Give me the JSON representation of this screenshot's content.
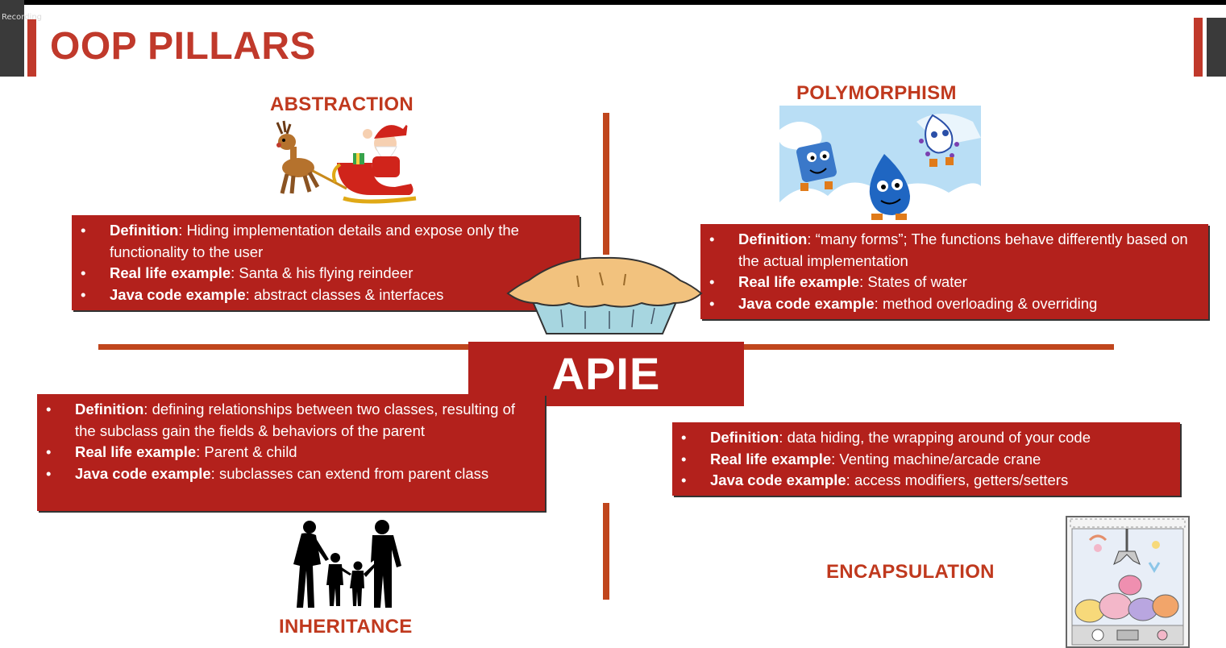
{
  "recording_label": "Recording",
  "title": "OOP PILLARS",
  "center_label": "APIE",
  "abstraction": {
    "heading": "ABSTRACTION",
    "definition_label": "Definition",
    "definition_text": ": Hiding implementation details and expose only the functionality to the user",
    "real_label": "Real life example",
    "real_text": ": Santa & his flying reindeer",
    "java_label": "Java code example",
    "java_text": ": abstract classes & interfaces"
  },
  "polymorphism": {
    "heading": "POLYMORPHISM",
    "definition_label": "Definition",
    "definition_text": ": “many forms”; The functions behave differently based on the actual implementation",
    "real_label": "Real life example",
    "real_text": ": States of water",
    "java_label": "Java code example",
    "java_text": ": method overloading & overriding"
  },
  "inheritance": {
    "heading": "INHERITANCE",
    "definition_label": "Definition",
    "definition_text": ": defining relationships between two classes, resulting of the subclass gain the fields & behaviors of the parent",
    "real_label": "Real life example",
    "real_text": ": Parent & child",
    "java_label": "Java code example",
    "java_text": ": subclasses can extend from parent class"
  },
  "encapsulation": {
    "heading": "ENCAPSULATION",
    "definition_label": "Definition",
    "definition_text": ": data hiding, the wrapping around of your code",
    "real_label": "Real life example",
    "real_text": ": Venting machine/arcade crane",
    "java_label": "Java code example",
    "java_text": ": access modifiers, getters/setters"
  },
  "colors": {
    "accent": "#c0392b",
    "box": "#b3211c",
    "line": "#c0461d"
  },
  "icons": [
    "santa-sleigh-image",
    "water-states-image",
    "pie-image",
    "family-silhouette-image",
    "arcade-crane-image"
  ]
}
